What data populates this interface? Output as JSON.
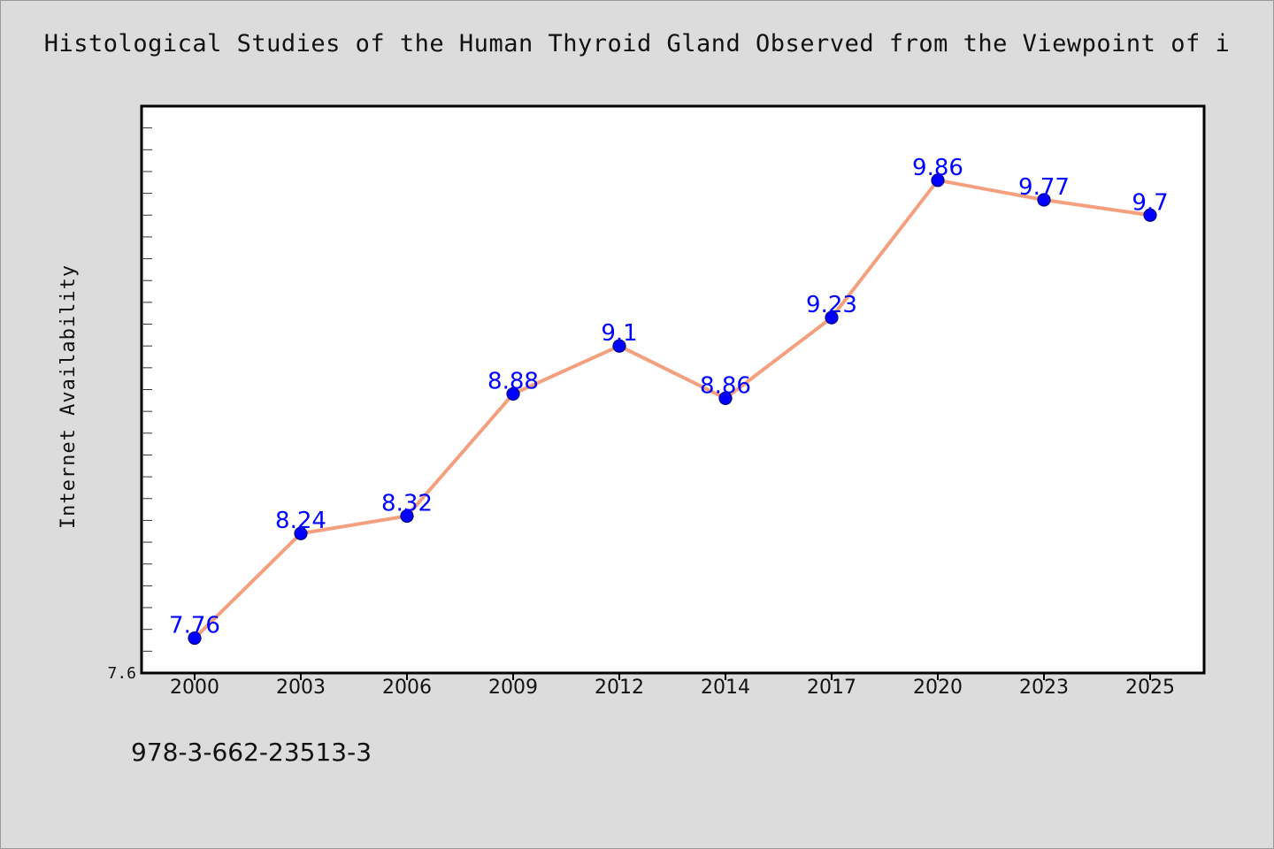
{
  "title": "Histological Studies of the Human Thyroid Gland Observed from the Viewpoint of i",
  "footer": {
    "isbn": "978-3-662-23513-3"
  },
  "colors": {
    "background": "#dcdcdc",
    "plot_background": "#ffffff",
    "line": "#f4a07e",
    "marker": "#0000ff",
    "data_label": "#0000ff"
  },
  "chart_data": {
    "type": "line",
    "title": "Histological Studies of the Human Thyroid Gland Observed from the Viewpoint of i",
    "xlabel": "",
    "ylabel": "Internet Availability",
    "categories": [
      "2000",
      "2003",
      "2006",
      "2009",
      "2012",
      "2014",
      "2017",
      "2020",
      "2023",
      "2025"
    ],
    "series": [
      {
        "values": [
          7.76,
          8.24,
          8.32,
          8.88,
          9.1,
          8.86,
          9.23,
          9.86,
          9.77,
          9.7
        ]
      }
    ],
    "data_labels": [
      "7.76",
      "8.24",
      "8.32",
      "8.88",
      "9.1",
      "8.86",
      "9.23",
      "9.86",
      "9.77",
      "9.7"
    ],
    "y_tick_labels": [
      "7.6"
    ],
    "ylim": [
      7.6,
      10.2
    ],
    "grid": false,
    "legend": "none"
  }
}
